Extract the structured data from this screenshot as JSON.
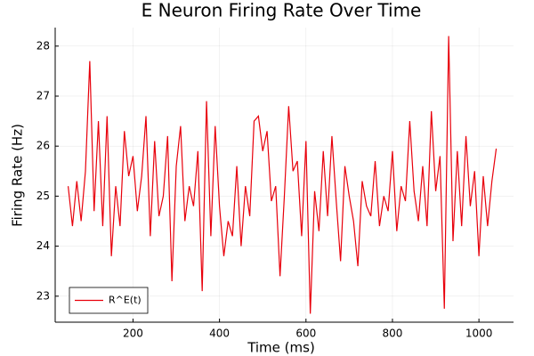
{
  "chart_data": {
    "type": "line",
    "title": "E Neuron Firing Rate Over Time",
    "x_label": "Time (ms)",
    "y_label": "Firing Rate (Hz)",
    "x": [
      50,
      60,
      70,
      80,
      90,
      100,
      110,
      120,
      130,
      140,
      150,
      160,
      170,
      180,
      190,
      200,
      210,
      220,
      230,
      240,
      250,
      260,
      270,
      280,
      290,
      300,
      310,
      320,
      330,
      340,
      350,
      360,
      370,
      380,
      390,
      400,
      410,
      420,
      430,
      440,
      450,
      460,
      470,
      480,
      490,
      500,
      510,
      520,
      530,
      540,
      550,
      560,
      570,
      580,
      590,
      600,
      610,
      620,
      630,
      640,
      650,
      660,
      670,
      680,
      690,
      700,
      710,
      720,
      730,
      740,
      750,
      760,
      770,
      780,
      790,
      800,
      810,
      820,
      830,
      840,
      850,
      860,
      870,
      880,
      890,
      900,
      910,
      920,
      930,
      940,
      950,
      960,
      970,
      980,
      990,
      1000,
      1010,
      1020,
      1030,
      1040
    ],
    "series": [
      {
        "name": "R^E(t)",
        "color": "#e8000b",
        "values": [
          25.2,
          24.4,
          25.3,
          24.5,
          25.5,
          27.7,
          24.7,
          26.5,
          24.4,
          26.6,
          23.8,
          25.2,
          24.4,
          26.3,
          25.4,
          25.8,
          24.7,
          25.4,
          26.6,
          24.2,
          26.1,
          24.6,
          25.0,
          26.2,
          23.3,
          25.6,
          26.4,
          24.5,
          25.2,
          24.8,
          25.9,
          23.1,
          26.9,
          24.2,
          26.4,
          24.8,
          23.8,
          24.5,
          24.2,
          25.6,
          24.0,
          25.2,
          24.6,
          26.5,
          26.6,
          25.9,
          26.3,
          24.9,
          25.2,
          23.4,
          25.0,
          26.8,
          25.5,
          25.7,
          24.2,
          26.1,
          22.65,
          25.1,
          24.3,
          25.9,
          24.6,
          26.2,
          24.9,
          23.7,
          25.6,
          25.0,
          24.5,
          23.6,
          25.3,
          24.8,
          24.6,
          25.7,
          24.4,
          25.0,
          24.7,
          25.9,
          24.3,
          25.2,
          24.9,
          26.5,
          25.1,
          24.5,
          25.6,
          24.4,
          26.7,
          25.1,
          25.8,
          22.75,
          28.2,
          24.1,
          25.9,
          24.4,
          26.2,
          24.8,
          25.5,
          23.8,
          25.4,
          24.4,
          25.3,
          25.95
        ]
      }
    ],
    "xlim": [
      20,
      1080
    ],
    "ylim": [
      22.48,
      28.37
    ],
    "xticks": [
      200,
      400,
      600,
      800,
      1000
    ],
    "yticks": [
      23,
      24,
      25,
      26,
      27,
      28
    ],
    "grid": true,
    "legend": "bottom-left"
  }
}
